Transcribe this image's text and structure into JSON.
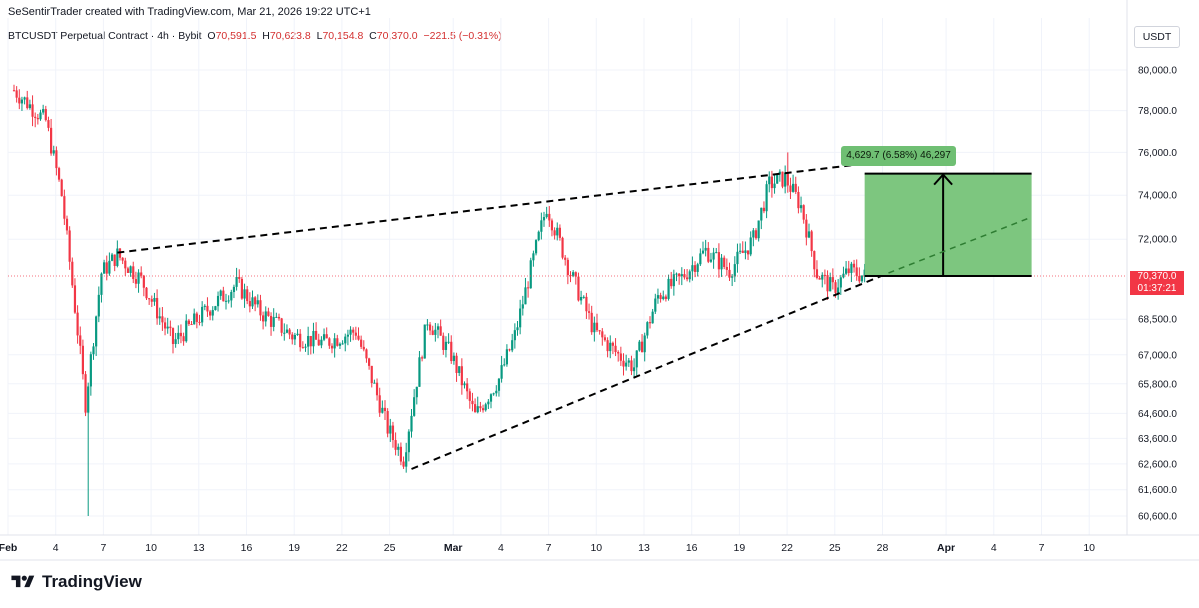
{
  "header": {
    "credit": "SeSentirTrader created with TradingView.com, Mar 21, 2026 19:22 UTC+1"
  },
  "legend": {
    "symbol": "BTCUSDT Perpetual Contract · 4h · Bybit",
    "o_label": "O",
    "o_value": "70,591.5",
    "h_label": "H",
    "h_value": "70,623.8",
    "l_label": "L",
    "l_value": "70,154.8",
    "c_label": "C",
    "c_value": "70,370.0",
    "change": "−221.5 (−0.31%)"
  },
  "currency_button": "USDT",
  "current_price": {
    "price": "70,370.0",
    "countdown": "01:37:21"
  },
  "measure_callout": "4,629.7 (6.58%) 46,297",
  "footer": {
    "brand": "TradingView"
  },
  "colors": {
    "up": "#089981",
    "down": "#f23645",
    "measure_fill": "#7dc67f",
    "grid": "#f0f3fa"
  },
  "chart_data": {
    "type": "candlestick",
    "interval": "4h",
    "x_ticks": [
      "Feb",
      "4",
      "7",
      "10",
      "13",
      "16",
      "19",
      "22",
      "25",
      "Mar",
      "4",
      "7",
      "10",
      "13",
      "16",
      "19",
      "22",
      "25",
      "28",
      "Apr",
      "4",
      "7",
      "10"
    ],
    "y_ticks": [
      "80,000.0",
      "78,000.0",
      "76,000.0",
      "74,000.0",
      "72,000.0",
      "68,500.0",
      "67,000.0",
      "65,800.0",
      "64,600.0",
      "63,600.0",
      "62,600.0",
      "61,600.0",
      "60,600.0"
    ],
    "y_scale": "log",
    "ylim": [
      60000,
      82000
    ],
    "closes_by_day": [
      {
        "day": 0,
        "close": 79000
      },
      {
        "day": 2,
        "close": 77500
      },
      {
        "day": 3,
        "close": 74000
      },
      {
        "day": 4.5,
        "close": 65000
      },
      {
        "day": 5.5,
        "close": 70500
      },
      {
        "day": 6.5,
        "close": 71300
      },
      {
        "day": 8,
        "close": 70200
      },
      {
        "day": 10,
        "close": 67500
      },
      {
        "day": 12,
        "close": 68800
      },
      {
        "day": 14,
        "close": 70000
      },
      {
        "day": 15.5,
        "close": 68800
      },
      {
        "day": 17.5,
        "close": 67800
      },
      {
        "day": 19.5,
        "close": 67500
      },
      {
        "day": 21.5,
        "close": 68000
      },
      {
        "day": 23.5,
        "close": 64000
      },
      {
        "day": 24.5,
        "close": 62800
      },
      {
        "day": 26,
        "close": 68500
      },
      {
        "day": 27.5,
        "close": 67000
      },
      {
        "day": 29,
        "close": 64500
      },
      {
        "day": 30.5,
        "close": 66000
      },
      {
        "day": 31.5,
        "close": 67800
      },
      {
        "day": 33.5,
        "close": 73500
      },
      {
        "day": 35,
        "close": 70500
      },
      {
        "day": 36.5,
        "close": 68000
      },
      {
        "day": 38,
        "close": 67000
      },
      {
        "day": 39,
        "close": 66500
      },
      {
        "day": 40.5,
        "close": 69500
      },
      {
        "day": 42,
        "close": 70300
      },
      {
        "day": 43.5,
        "close": 71500
      },
      {
        "day": 45,
        "close": 70600
      },
      {
        "day": 46.5,
        "close": 72000
      },
      {
        "day": 47.5,
        "close": 74500
      },
      {
        "day": 48.5,
        "close": 74800
      },
      {
        "day": 49.5,
        "close": 73500
      },
      {
        "day": 50.5,
        "close": 70500
      },
      {
        "day": 51.5,
        "close": 69800
      },
      {
        "day": 52.5,
        "close": 70600
      },
      {
        "day": 53.5,
        "close": 70370
      }
    ],
    "upper_trendline": [
      {
        "day": 6.5,
        "price": 71400
      },
      {
        "day": 55,
        "price": 75600
      }
    ],
    "lower_trendline": [
      {
        "day": 25,
        "price": 62400
      },
      {
        "day": 55,
        "price": 70500
      }
    ],
    "projection": [
      {
        "day": 55,
        "price": 70500
      },
      {
        "day": 64,
        "price": 73000
      }
    ],
    "measure_box": {
      "from_day": 53.5,
      "to_day": 64,
      "low": 70370,
      "high": 75000
    }
  }
}
